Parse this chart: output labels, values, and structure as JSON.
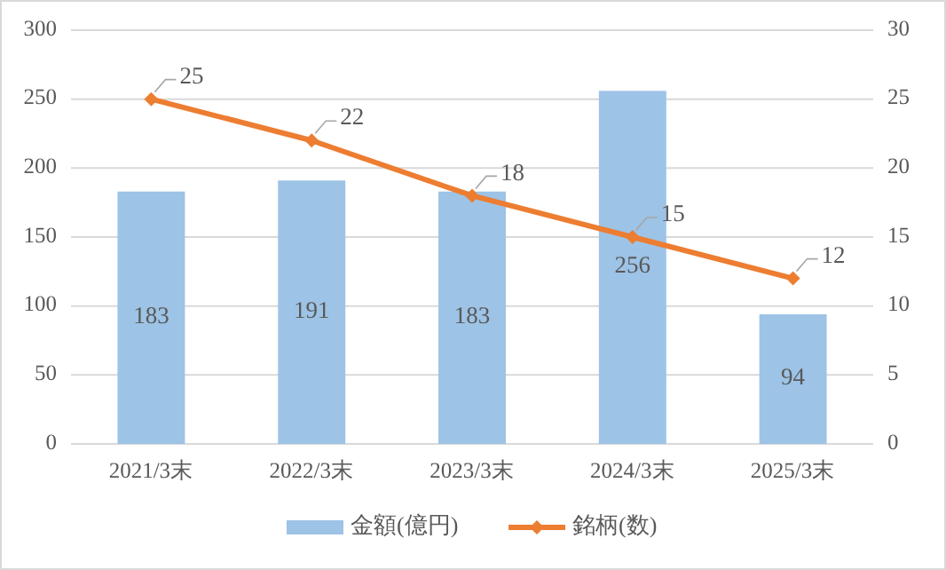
{
  "chart_data": {
    "type": "bar",
    "categories": [
      "2021/3末",
      "2022/3末",
      "2023/3末",
      "2024/3末",
      "2025/3末"
    ],
    "series": [
      {
        "name": "金額(億円)",
        "color": "#9dc3e6",
        "values": [
          183,
          191,
          183,
          256,
          94
        ]
      },
      {
        "name": "銘柄(数)",
        "type": "line",
        "axis": "y2",
        "color": "#ed7d31",
        "values": [
          25,
          22,
          18,
          15,
          12
        ]
      }
    ],
    "ylim": [
      0,
      300
    ],
    "yticks": [
      0,
      50,
      100,
      150,
      200,
      250,
      300
    ],
    "y2lim": [
      0,
      30
    ],
    "y2ticks": [
      0,
      5,
      10,
      15,
      20,
      25,
      30
    ],
    "grid": "y",
    "legend": "bottom",
    "marker": "diamond",
    "line_style": "solid",
    "data_labels": true
  }
}
